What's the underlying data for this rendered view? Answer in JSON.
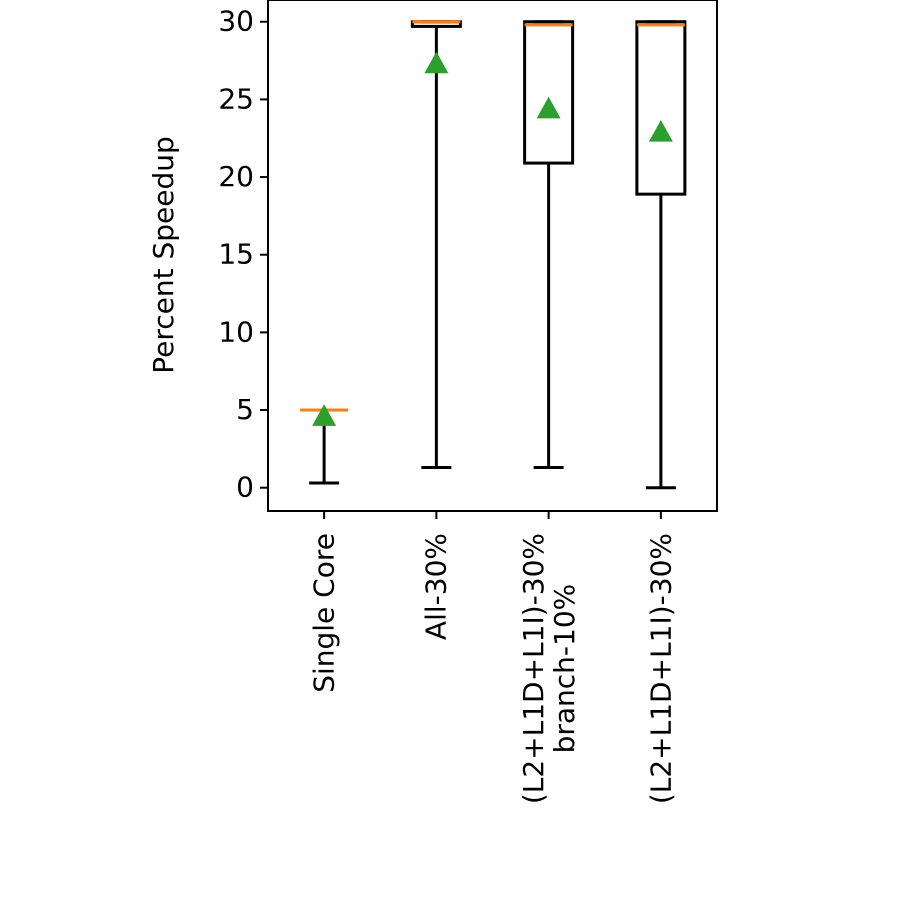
{
  "chart_data": {
    "type": "box",
    "y_label": "Percent Speedup",
    "categories": [
      "Single Core",
      "All-30%",
      "(L2+L1D+L1I)-30%\nbranch-10%",
      "(L2+L1D+L1I)-30%"
    ],
    "whisker_low": [
      0.3,
      1.3,
      1.3,
      0
    ],
    "q1": [
      5,
      29.7,
      20.9,
      18.9
    ],
    "median": [
      5,
      30,
      29.8,
      29.8
    ],
    "q3": [
      5,
      30,
      30,
      30
    ],
    "whisker_high": [
      5,
      30,
      30,
      30
    ],
    "mean": [
      4.6,
      27.3,
      24.4,
      22.9
    ],
    "box_color": "#000000",
    "median_color": "#ff7f0e",
    "mean_color": "#2ca02c",
    "ylim": [
      -1.5,
      31.4
    ],
    "yticks": [
      0,
      5,
      10,
      15,
      20,
      25,
      30
    ]
  }
}
